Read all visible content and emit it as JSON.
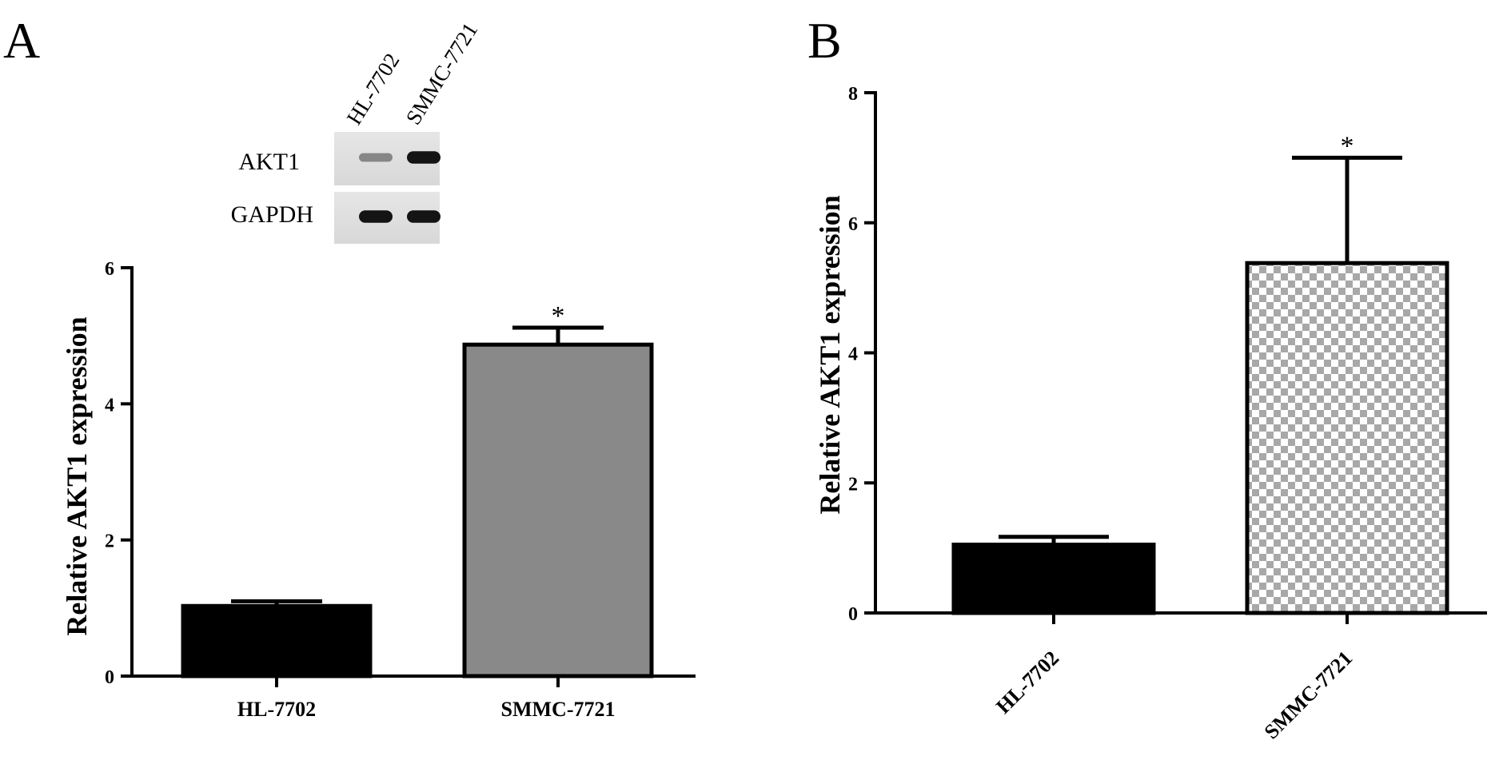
{
  "panels": {
    "a": {
      "letter": "A"
    },
    "b": {
      "letter": "B"
    }
  },
  "western_blot": {
    "lanes": [
      "HL-7702",
      "SMMC-7721"
    ],
    "rows": [
      {
        "label": "AKT1",
        "intensities": [
          0.35,
          0.95
        ]
      },
      {
        "label": "GAPDH",
        "intensities": [
          0.95,
          0.95
        ]
      }
    ]
  },
  "chart_data": [
    {
      "panel": "A",
      "type": "bar",
      "categories": [
        "HL-7702",
        "SMMC-7721"
      ],
      "values": [
        1.03,
        4.87
      ],
      "error": [
        0.07,
        0.25
      ],
      "significance": [
        "",
        "*"
      ],
      "title": "",
      "xlabel": "",
      "ylabel": "Relative AKT1 expression",
      "ylim": [
        0,
        6
      ],
      "yticks": [
        "0",
        "2",
        "4",
        "6"
      ],
      "fills": [
        "#000000",
        "#898989"
      ],
      "grid": false,
      "legend": "none"
    },
    {
      "panel": "B",
      "type": "bar",
      "categories": [
        "HL-7702",
        "SMMC-7721"
      ],
      "values": [
        1.05,
        5.38
      ],
      "error": [
        0.12,
        1.62
      ],
      "significance": [
        "",
        "*"
      ],
      "title": "",
      "xlabel": "",
      "ylabel": "Relative AKT1 expression",
      "ylim": [
        0,
        8
      ],
      "yticks": [
        "0",
        "2",
        "4",
        "6",
        "8"
      ],
      "fills": [
        "#000000",
        "checkered-gray"
      ],
      "grid": false,
      "legend": "none"
    }
  ]
}
